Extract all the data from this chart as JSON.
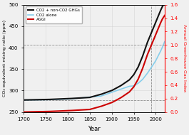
{
  "title": "",
  "xlabel": "Year",
  "ylabel_left": "CO₂ equivalent mixing ratio (ppm)",
  "ylabel_right": "Annual Greenhouse Gas Index",
  "xlim": [
    1700,
    2020
  ],
  "ylim_left": [
    250,
    500
  ],
  "ylim_right": [
    0.0,
    1.6
  ],
  "yticks_left": [
    250,
    300,
    350,
    400,
    450,
    500
  ],
  "yticks_right": [
    0.0,
    0.2,
    0.4,
    0.6,
    0.8,
    1.0,
    1.2,
    1.4,
    1.6
  ],
  "xticks": [
    1700,
    1750,
    1800,
    1850,
    1900,
    1950,
    2000
  ],
  "legend": [
    {
      "label": "CO2 + non-CO2 GHGs",
      "color": "#111111",
      "lw": 1.5
    },
    {
      "label": "CO2 alone",
      "color": "#87CEEB",
      "lw": 1.2
    },
    {
      "label": "AGGI",
      "color": "#cc0000",
      "lw": 1.5
    }
  ],
  "dashed_hline_y_left": 278,
  "dashed_vline_x": 1990,
  "background_color": "#f0f0f0",
  "grid_color": "#cccccc"
}
